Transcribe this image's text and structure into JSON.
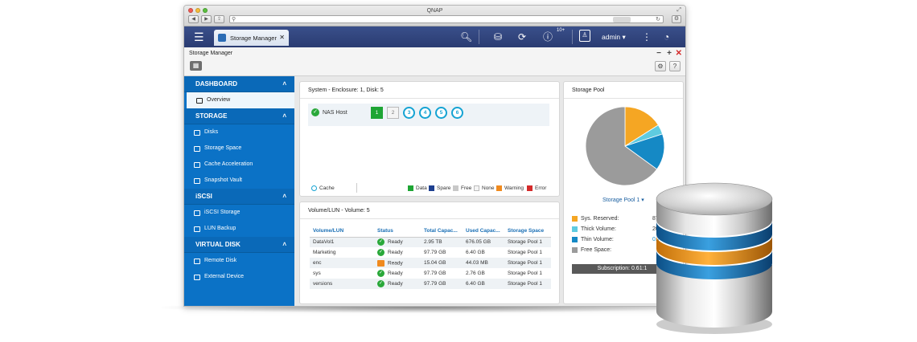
{
  "browser": {
    "title": "QNAP"
  },
  "app": {
    "tab_label": "Storage Manager",
    "badge": "10+",
    "user": "admin"
  },
  "window": {
    "title": "Storage Manager"
  },
  "sidebar": {
    "sections": [
      {
        "title": "DASHBOARD",
        "items": [
          "Overview"
        ]
      },
      {
        "title": "STORAGE",
        "items": [
          "Disks",
          "Storage Space",
          "Cache Acceleration",
          "Snapshot Vault"
        ]
      },
      {
        "title": "iSCSI",
        "items": [
          "iSCSI Storage",
          "LUN Backup"
        ]
      },
      {
        "title": "VIRTUAL DISK",
        "items": [
          "Remote Disk",
          "External Device"
        ]
      }
    ]
  },
  "system": {
    "title": "System - Enclosure: 1, Disk: 5",
    "host_label": "NAS Host",
    "bays": [
      "1",
      "2",
      "3",
      "4",
      "5",
      "6"
    ],
    "cache_label": "Cache",
    "legend": [
      {
        "label": "Data",
        "color": "#1ea534"
      },
      {
        "label": "Spare",
        "color": "#1d3f8f"
      },
      {
        "label": "Free",
        "color": "#c8c8c8"
      },
      {
        "label": "None",
        "color": "#f4f4f4"
      },
      {
        "label": "Warning",
        "color": "#f08a1e"
      },
      {
        "label": "Error",
        "color": "#d42a2a"
      }
    ]
  },
  "volumes": {
    "title": "Volume/LUN - Volume: 5",
    "headers": [
      "Volume/LUN",
      "Status",
      "Total Capac...",
      "Used Capac...",
      "Storage Space"
    ],
    "rows": [
      {
        "name": "DataVol1",
        "status": "Ready",
        "total": "2.95 TB",
        "used": "676.05 GB",
        "space": "Storage Pool 1"
      },
      {
        "name": "Marketing",
        "status": "Ready",
        "total": "97.79 GB",
        "used": "6.40 GB",
        "space": "Storage Pool 1"
      },
      {
        "name": "enc",
        "status": "Ready",
        "total": "15.04 GB",
        "used": "44.03 MB",
        "space": "Storage Pool 1"
      },
      {
        "name": "sys",
        "status": "Ready",
        "total": "97.79 GB",
        "used": "2.76 GB",
        "space": "Storage Pool 1"
      },
      {
        "name": "versions",
        "status": "Ready",
        "total": "97.79 GB",
        "used": "6.40 GB",
        "space": "Storage Pool 1"
      }
    ]
  },
  "pool": {
    "title": "Storage Pool",
    "selected": "Storage Pool 1",
    "legend": [
      {
        "label": "Sys. Reserved:",
        "value": "87",
        "color": "#f5a623"
      },
      {
        "label": "Thick Volume:",
        "value": "20",
        "color": "#5fcbe0"
      },
      {
        "label": "Thin Volume:",
        "value": "0.7",
        "color": "#1589c5"
      },
      {
        "label": "Free Space:",
        "value": "",
        "color": "#9b9b9b"
      }
    ],
    "subscription": "Subscription: 0.61:1"
  },
  "chart_data": {
    "type": "pie",
    "categories": [
      "Sys. Reserved",
      "Thick Volume",
      "Thin Volume",
      "Free Space"
    ],
    "values": [
      16,
      4,
      15,
      65
    ],
    "colors": [
      "#f5a623",
      "#5fcbe0",
      "#1589c5",
      "#9b9b9b"
    ]
  }
}
